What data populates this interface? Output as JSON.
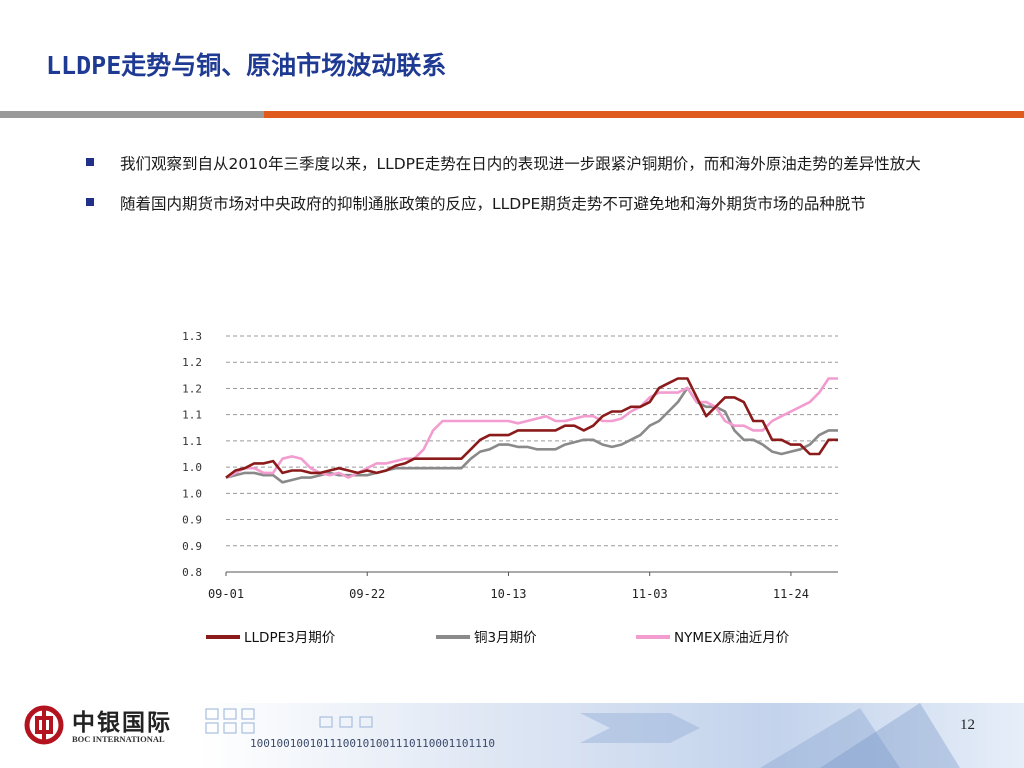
{
  "slide": {
    "title": "LLDPE走势与铜、原油市场波动联系",
    "page_number": "12",
    "colors": {
      "title": "#1f3a93",
      "rule_gray": "#9a9a9a",
      "rule_orange": "#e15a1d",
      "bullet": "#1f2f8a"
    }
  },
  "bullets": [
    {
      "text": "我们观察到自从2010年三季度以来，LLDPE走势在日内的表现进一步跟紧沪铜期价，而和海外原油走势的差异性放大"
    },
    {
      "text": "随着国内期货市场对中央政府的抑制通胀政策的反应，LLDPE期货走势不可避免地和海外期货市场的品种脱节"
    }
  ],
  "footer": {
    "logo_cn": "中银国际",
    "logo_en": "BOC INTERNATIONAL",
    "logo_icon": "bank-of-china-logo-icon",
    "binary_text": "1001001001011100101001110110001101110"
  },
  "chart_data": {
    "type": "line",
    "y_ticks": [
      "1.3",
      "1.2",
      "1.2",
      "1.1",
      "1.1",
      "1.0",
      "1.0",
      "0.9",
      "0.9",
      "0.8"
    ],
    "ylim": [
      0.8,
      1.3
    ],
    "x_ticks": [
      "09-01",
      "09-22",
      "10-13",
      "11-03",
      "11-24"
    ],
    "x_tick_index": [
      0,
      15,
      30,
      45,
      60
    ],
    "grid": "horizontal-dashed",
    "legend_position": "bottom",
    "series": [
      {
        "name": "LLDPE3月期价",
        "color": "#8b1a1a",
        "values": [
          1.0,
          1.015,
          1.02,
          1.03,
          1.03,
          1.035,
          1.01,
          1.015,
          1.015,
          1.01,
          1.01,
          1.015,
          1.02,
          1.015,
          1.01,
          1.015,
          1.01,
          1.015,
          1.025,
          1.03,
          1.04,
          1.04,
          1.04,
          1.04,
          1.04,
          1.04,
          1.06,
          1.08,
          1.09,
          1.09,
          1.09,
          1.1,
          1.1,
          1.1,
          1.1,
          1.1,
          1.11,
          1.11,
          1.1,
          1.11,
          1.13,
          1.14,
          1.14,
          1.15,
          1.15,
          1.16,
          1.19,
          1.2,
          1.21,
          1.21,
          1.17,
          1.13,
          1.15,
          1.17,
          1.17,
          1.16,
          1.12,
          1.12,
          1.08,
          1.08,
          1.07,
          1.07,
          1.05,
          1.05,
          1.08,
          1.08
        ]
      },
      {
        "name": "铜3月期价",
        "color": "#8a8a8a",
        "values": [
          1.0,
          1.005,
          1.01,
          1.01,
          1.005,
          1.005,
          0.99,
          0.995,
          1.0,
          1.0,
          1.005,
          1.01,
          1.005,
          1.005,
          1.005,
          1.005,
          1.01,
          1.015,
          1.02,
          1.02,
          1.02,
          1.02,
          1.02,
          1.02,
          1.02,
          1.02,
          1.04,
          1.055,
          1.06,
          1.07,
          1.07,
          1.065,
          1.065,
          1.06,
          1.06,
          1.06,
          1.07,
          1.075,
          1.08,
          1.08,
          1.07,
          1.065,
          1.07,
          1.08,
          1.09,
          1.11,
          1.12,
          1.14,
          1.16,
          1.19,
          1.16,
          1.15,
          1.15,
          1.14,
          1.1,
          1.08,
          1.08,
          1.07,
          1.055,
          1.05,
          1.055,
          1.06,
          1.07,
          1.09,
          1.1,
          1.1
        ]
      },
      {
        "name": "NYMEX原油近月价",
        "color": "#f29ccf",
        "values": [
          1.0,
          1.01,
          1.02,
          1.02,
          1.01,
          1.01,
          1.04,
          1.045,
          1.04,
          1.02,
          1.01,
          1.005,
          1.01,
          1.0,
          1.01,
          1.02,
          1.03,
          1.03,
          1.035,
          1.04,
          1.04,
          1.06,
          1.1,
          1.12,
          1.12,
          1.12,
          1.12,
          1.12,
          1.12,
          1.12,
          1.12,
          1.115,
          1.12,
          1.125,
          1.13,
          1.12,
          1.12,
          1.125,
          1.13,
          1.13,
          1.12,
          1.12,
          1.125,
          1.14,
          1.15,
          1.17,
          1.18,
          1.18,
          1.18,
          1.19,
          1.16,
          1.16,
          1.15,
          1.12,
          1.11,
          1.11,
          1.1,
          1.1,
          1.12,
          1.13,
          1.14,
          1.15,
          1.16,
          1.18,
          1.21,
          1.21
        ]
      }
    ]
  }
}
